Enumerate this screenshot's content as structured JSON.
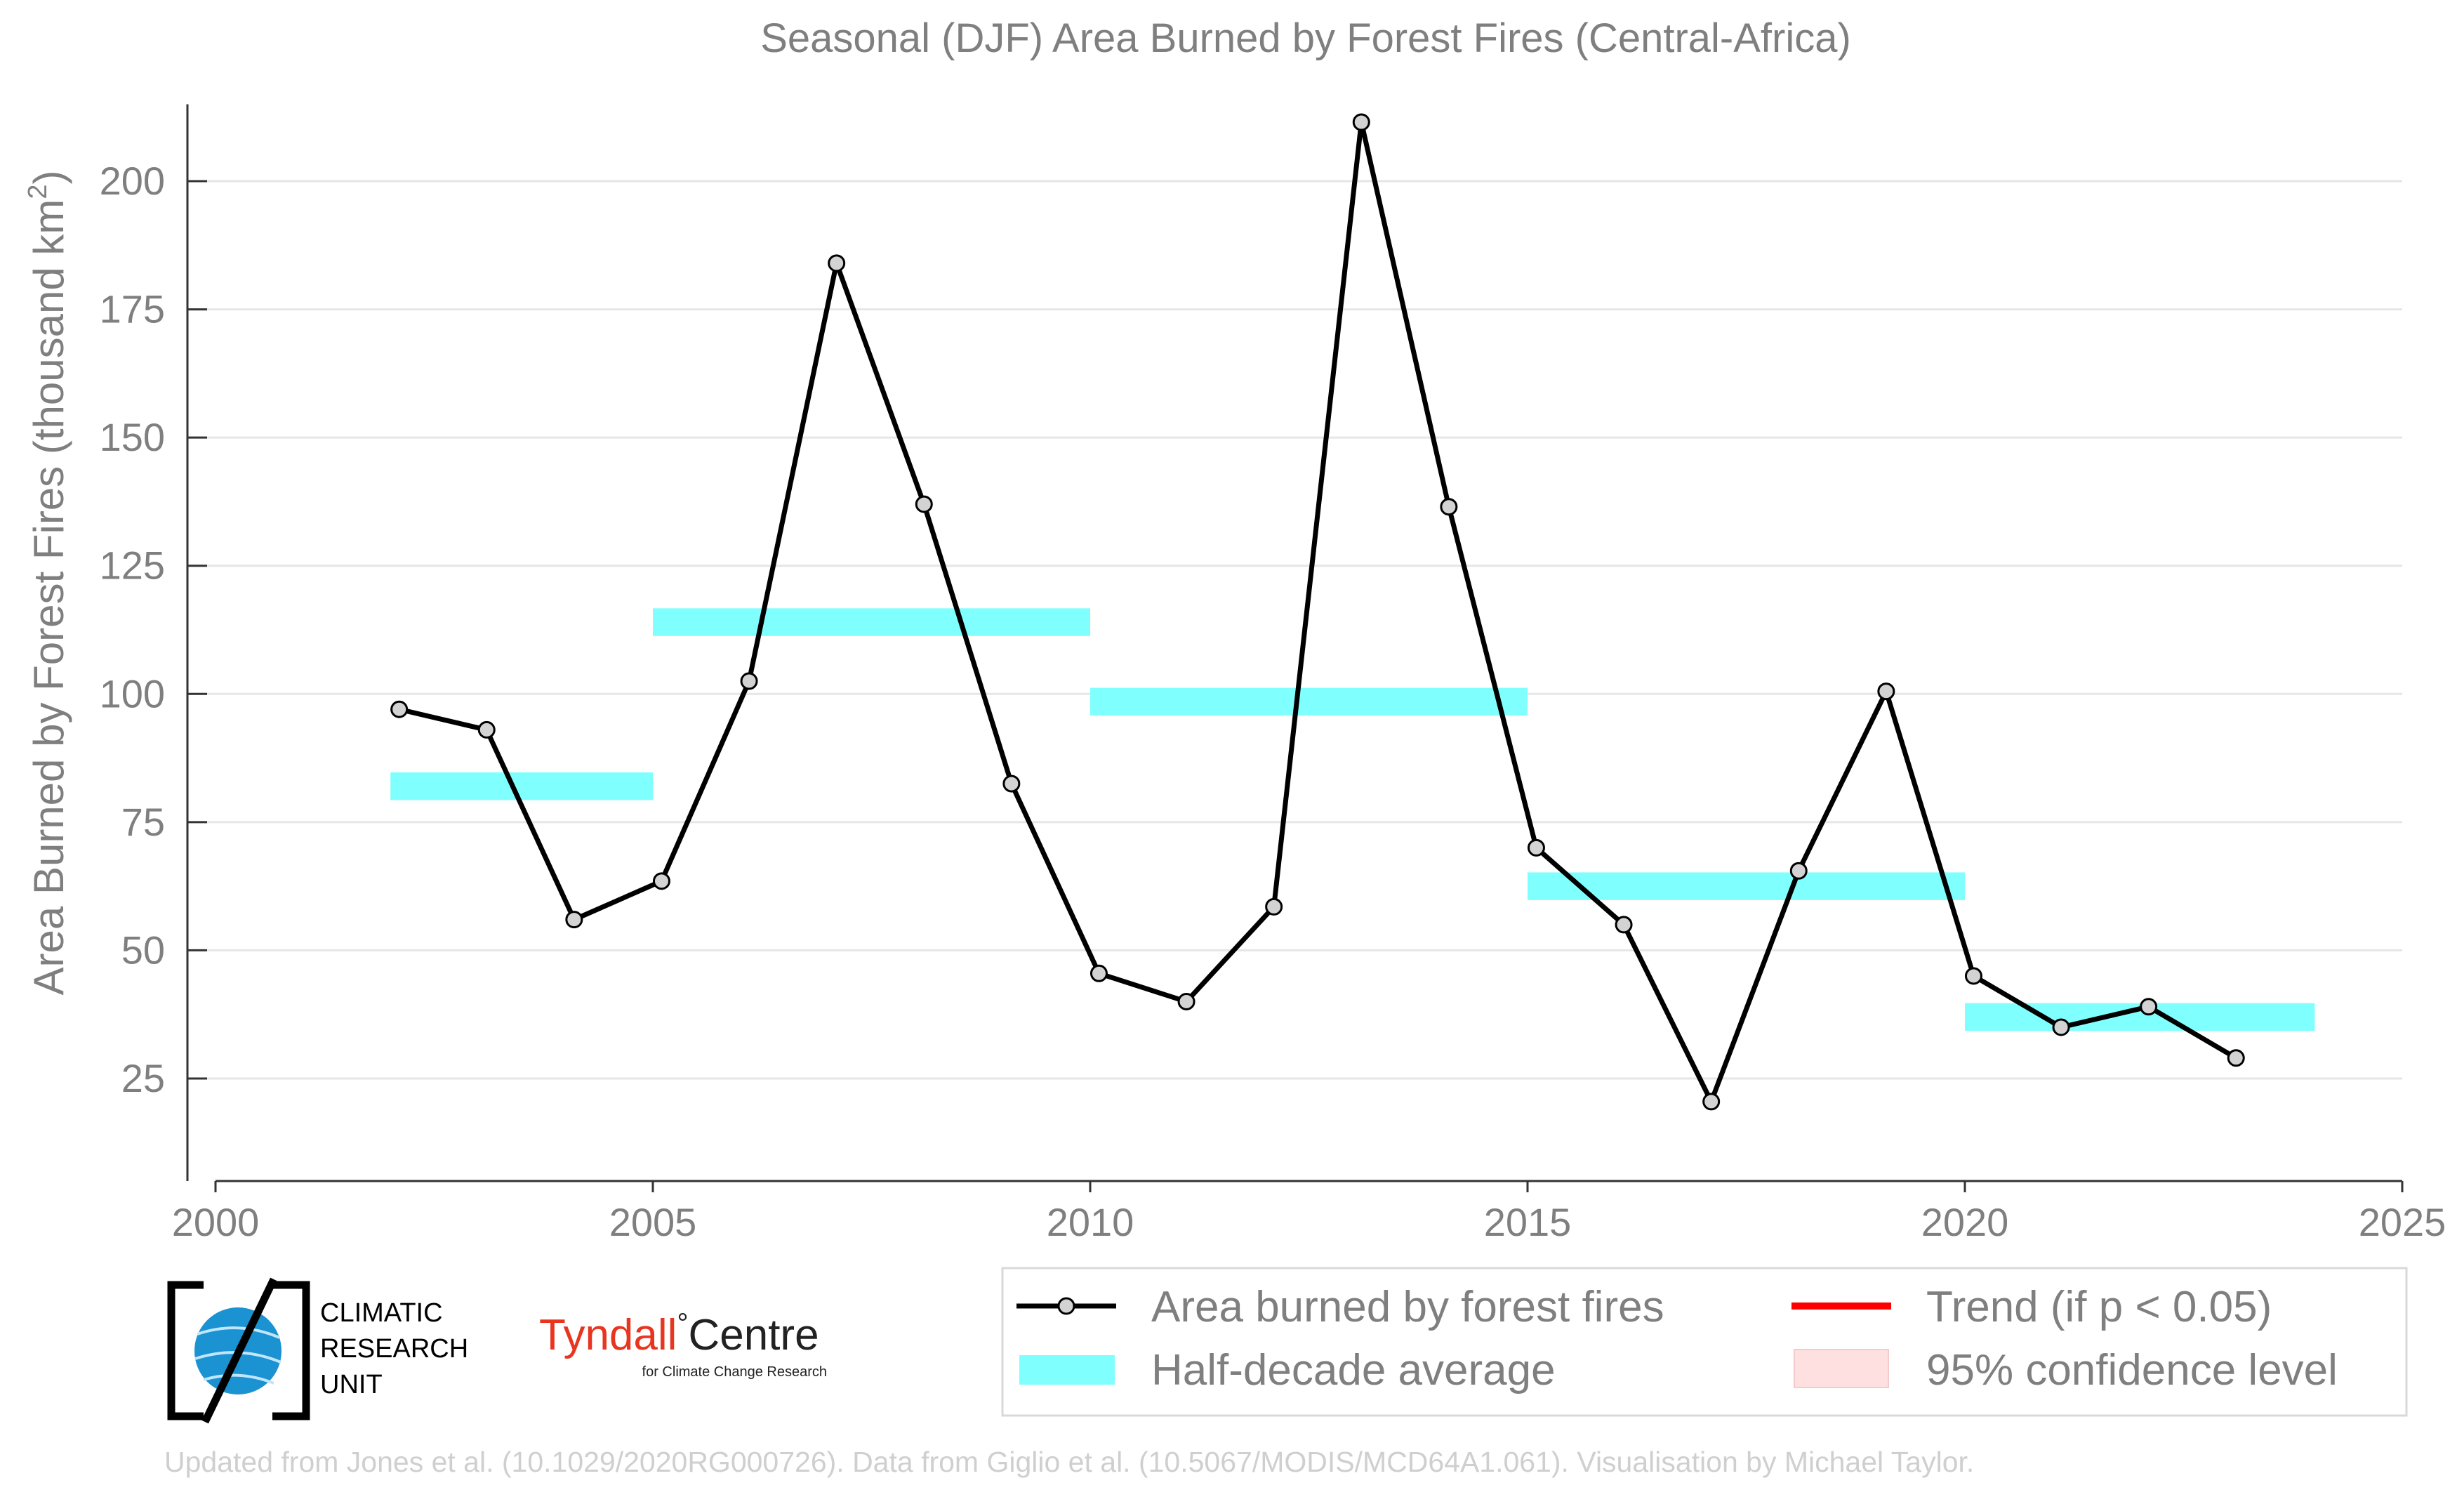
{
  "chart_data": {
    "type": "line",
    "title": "Seasonal (DJF) Area Burned by Forest Fires (Central-Africa)",
    "ylabel_main": "Area Burned by Forest Fires (thousand km",
    "ylabel_sup": "2",
    "ylabel_close": ")",
    "xlabel": "",
    "xlim": [
      2000,
      2025
    ],
    "ylim": [
      5,
      215
    ],
    "grid": true,
    "x_ticks": [
      2000,
      2005,
      2010,
      2015,
      2020,
      2025
    ],
    "y_ticks": [
      25,
      50,
      75,
      100,
      125,
      150,
      175,
      200
    ],
    "series": [
      {
        "name": "Area burned by forest fires",
        "color": "#000000",
        "marker_fill": "#d3d3d3",
        "x": [
          2002,
          2003,
          2004,
          2005,
          2006,
          2007,
          2008,
          2009,
          2010,
          2011,
          2012,
          2013,
          2014,
          2015,
          2016,
          2017,
          2018,
          2019,
          2020,
          2021,
          2022,
          2023
        ],
        "y": [
          97,
          93,
          56,
          63.5,
          102.5,
          184,
          137,
          82.5,
          45.5,
          40,
          58.5,
          211.5,
          136.5,
          70,
          55,
          20.5,
          65.5,
          100.5,
          45,
          35,
          39,
          29
        ]
      }
    ],
    "half_decade_average": {
      "name": "Half-decade average",
      "color": "#80ffff",
      "segments": [
        {
          "x0": 2002,
          "x1": 2005,
          "y": 82
        },
        {
          "x0": 2005,
          "x1": 2010,
          "y": 114
        },
        {
          "x0": 2010,
          "x1": 2015,
          "y": 98.5
        },
        {
          "x0": 2015,
          "x1": 2020,
          "y": 62.5
        },
        {
          "x0": 2020,
          "x1": 2024,
          "y": 37
        }
      ]
    },
    "legend": {
      "placement": "bottom",
      "entries": [
        {
          "label": "Area burned by forest fires",
          "kind": "line-marker",
          "color": "#000000"
        },
        {
          "label": "Trend (if p < 0.05)",
          "kind": "line",
          "color": "#ff0000"
        },
        {
          "label": "Half-decade average",
          "kind": "band",
          "color": "#80ffff"
        },
        {
          "label": "95% confidence level",
          "kind": "band",
          "color": "#ffe0e0"
        }
      ]
    }
  },
  "logos": {
    "cru_line1": "CLIMATIC",
    "cru_line2": "RESEARCH",
    "cru_line3": "UNIT",
    "tyndall_name": "Tyndall",
    "tyndall_degree": "°",
    "tyndall_centre": "Centre",
    "tyndall_sub": "for Climate Change Research"
  },
  "footer": "Updated from Jones et al. (10.1029/2020RG000726). Data from Giglio et al. (10.5067/MODIS/MCD64A1.061). Visualisation by Michael Taylor."
}
